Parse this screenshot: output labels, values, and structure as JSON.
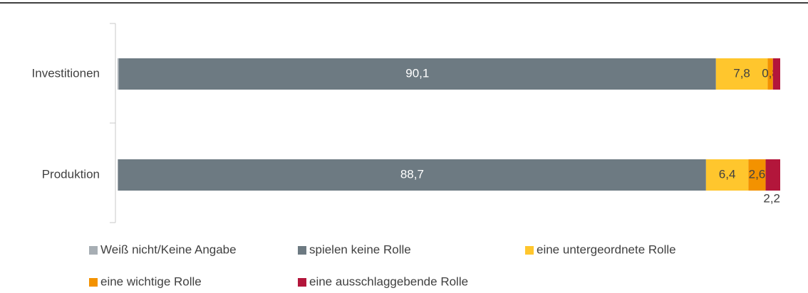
{
  "chart_data": {
    "type": "stacked-bar-horizontal",
    "categories": [
      "Investitionen",
      "Produktion"
    ],
    "xlim": [
      0,
      100
    ],
    "series": [
      {
        "name": "Weiß nicht/Keine Angabe",
        "color": "#a7aeb4",
        "values": [
          0.2,
          0.1
        ],
        "value_labels": [
          null,
          null
        ]
      },
      {
        "name": "spielen keine Rolle",
        "color": "#6d7a82",
        "values": [
          90.1,
          88.7
        ],
        "value_labels": [
          "90,1",
          "88,7"
        ]
      },
      {
        "name": "eine untergeordnete Rolle",
        "color": "#ffc62d",
        "values": [
          7.8,
          6.4
        ],
        "value_labels": [
          "7,8",
          "6,4"
        ]
      },
      {
        "name": "eine wichtige Rolle",
        "color": "#f39200",
        "values": [
          0.8,
          2.6
        ],
        "value_labels": [
          "0,8",
          "2,6"
        ]
      },
      {
        "name": "eine ausschlaggebende Rolle",
        "color": "#b3163b",
        "values": [
          1.1,
          2.2
        ],
        "value_labels": [
          null,
          "2,2"
        ]
      }
    ]
  }
}
